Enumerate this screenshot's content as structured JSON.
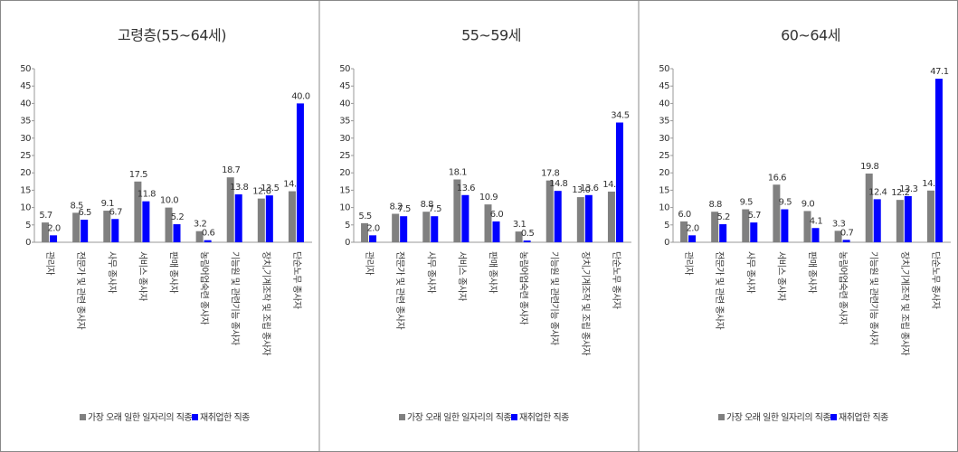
{
  "chart_data": [
    {
      "type": "bar",
      "title": "고령층(55~64세)",
      "categories": [
        "관리자",
        "전문가 및 관련 종사자",
        "사무 종사자",
        "서비스 종사자",
        "판매 종사자",
        "농림어업숙련 종사자",
        "기능원 및 관련기능 종사자",
        "장치,기계조작 및 조립 종사자",
        "단순노무 종사자"
      ],
      "series": [
        {
          "name": "가장 오래 일한 일자리의 직종",
          "color": "#808080",
          "values": [
            5.7,
            8.5,
            9.1,
            17.5,
            10,
            3.2,
            18.7,
            12.6,
            14.7
          ],
          "value_labels": [
            "5.7",
            "8.5",
            "9.1",
            "17.5",
            "10.0",
            "3.2",
            "18.7",
            "12.6",
            "14.7"
          ]
        },
        {
          "name": "재취업한 직종",
          "color": "#0000ff",
          "values": [
            2,
            6.5,
            6.7,
            11.8,
            5.2,
            0.6,
            13.8,
            13.5,
            40
          ],
          "value_labels": [
            "2.0",
            "6.5",
            "6.7",
            "11.8",
            "5.2",
            "0.6",
            "13.8",
            "13.5",
            "40.0"
          ]
        }
      ],
      "ylim": [
        0,
        50
      ],
      "yticks": [
        0,
        5,
        10,
        15,
        20,
        25,
        30,
        35,
        40,
        45,
        50
      ],
      "grid": false
    },
    {
      "type": "bar",
      "title": "55~59세",
      "categories": [
        "관리자",
        "전문가 및 관련 종사자",
        "사무 종사자",
        "서비스 종사자",
        "판매 종사자",
        "농림어업숙련 종사자",
        "기능원 및 관련기능 종사자",
        "장치,기계조작 및 조립 종사자",
        "단순노무 종사자"
      ],
      "series": [
        {
          "name": "가장 오래 일한 일자리의 직종",
          "color": "#808080",
          "values": [
            5.5,
            8.2,
            8.8,
            18.1,
            10.9,
            3.1,
            17.8,
            13,
            14.6
          ],
          "value_labels": [
            "5.5",
            "8.2",
            "8.8",
            "18.1",
            "10.9",
            "3.1",
            "17.8",
            "13.0",
            "14.6"
          ]
        },
        {
          "name": "재취업한 직종",
          "color": "#0000ff",
          "values": [
            2,
            7.5,
            7.5,
            13.6,
            6,
            0.5,
            14.8,
            13.6,
            34.5
          ],
          "value_labels": [
            "2.0",
            "7.5",
            "7.5",
            "13.6",
            "6.0",
            "0.5",
            "14.8",
            "13.6",
            "34.5"
          ]
        }
      ],
      "ylim": [
        0,
        50
      ],
      "yticks": [
        0,
        5,
        10,
        15,
        20,
        25,
        30,
        35,
        40,
        45,
        50
      ],
      "grid": false
    },
    {
      "type": "bar",
      "title": "60~64세",
      "categories": [
        "관리자",
        "전문가 및 관련 종사자",
        "사무 종사자",
        "서비스 종사자",
        "판매 종사자",
        "농림어업숙련 종사자",
        "기능원 및 관련기능 종사자",
        "장치,기계조작 및 조립 종사자",
        "단순노무 종사자"
      ],
      "series": [
        {
          "name": "가장 오래 일한 일자리의 직종",
          "color": "#808080",
          "values": [
            6,
            8.8,
            9.5,
            16.6,
            9,
            3.3,
            19.8,
            12.2,
            14.9
          ],
          "value_labels": [
            "6.0",
            "8.8",
            "9.5",
            "16.6",
            "9.0",
            "3.3",
            "19.8",
            "12.2",
            "14.9"
          ]
        },
        {
          "name": "재취업한 직종",
          "color": "#0000ff",
          "values": [
            2,
            5.2,
            5.7,
            9.5,
            4.1,
            0.7,
            12.4,
            13.3,
            47.1
          ],
          "value_labels": [
            "2.0",
            "5.2",
            "5.7",
            "9.5",
            "4.1",
            "0.7",
            "12.4",
            "13.3",
            "47.1"
          ]
        }
      ],
      "ylim": [
        0,
        50
      ],
      "yticks": [
        0,
        5,
        10,
        15,
        20,
        25,
        30,
        35,
        40,
        45,
        50
      ],
      "grid": false
    }
  ]
}
